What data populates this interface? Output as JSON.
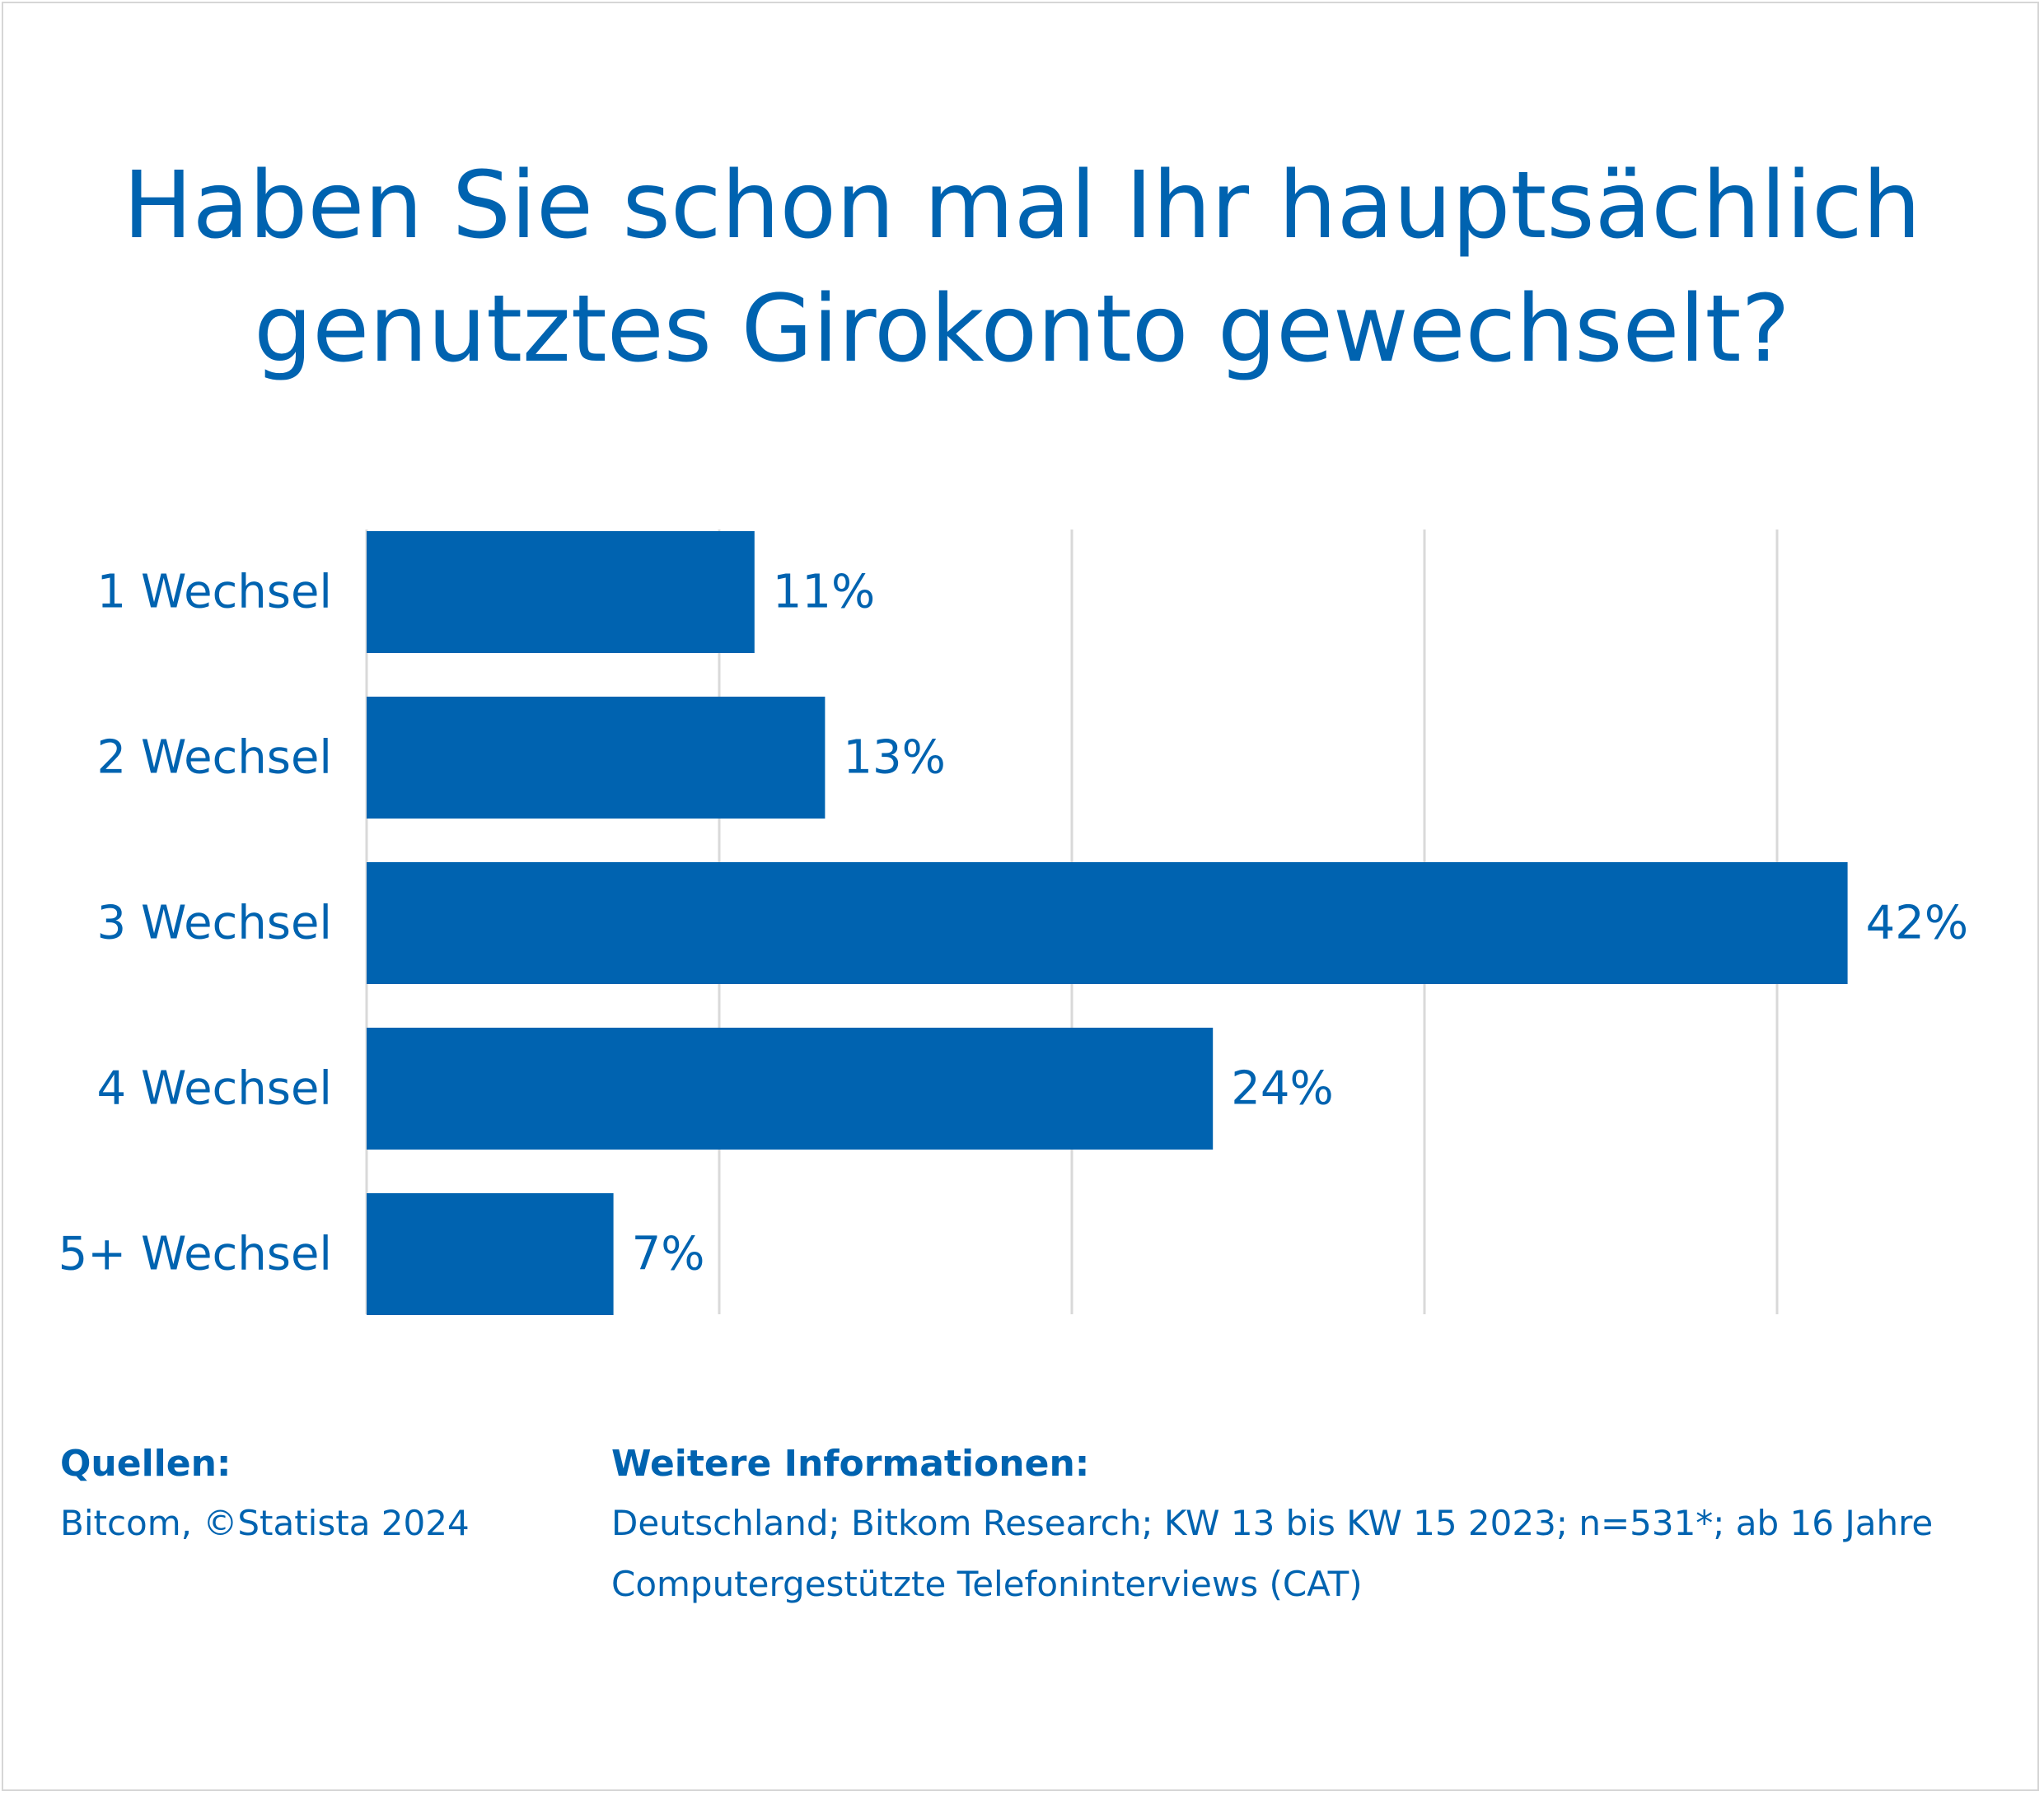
{
  "title_lines": [
    "Haben Sie schon mal Ihr hauptsächlich",
    "genutztes Girokonto gewechselt?"
  ],
  "chart_data": {
    "type": "bar",
    "orientation": "horizontal",
    "title": "Haben Sie schon mal Ihr hauptsächlich genutztes Girokonto gewechselt?",
    "categories": [
      "1 Wechsel",
      "2 Wechsel",
      "3 Wechsel",
      "4 Wechsel",
      "5+ Wechsel"
    ],
    "values": [
      11,
      13,
      42,
      24,
      7
    ],
    "data_labels": [
      "11%",
      "13%",
      "42%",
      "24%",
      "7%"
    ],
    "unit": "%",
    "xlim": [
      0,
      40
    ],
    "gridlines": [
      10,
      20,
      30,
      40
    ],
    "grid": true,
    "legend": "none",
    "bar_color": "#0063b0",
    "grid_color": "#d9d9d9"
  },
  "footer": {
    "sources_heading": "Quellen:",
    "sources_text": "Bitcom, ©Statista 2024",
    "info_heading": "Weitere Informationen:",
    "info_line1": "Deutschland; Bitkom Research; KW 13 bis KW 15 2023; n=531*; ab 16 Jahre",
    "info_line2": "Computergestützte Telefoninterviews (CAT)"
  }
}
